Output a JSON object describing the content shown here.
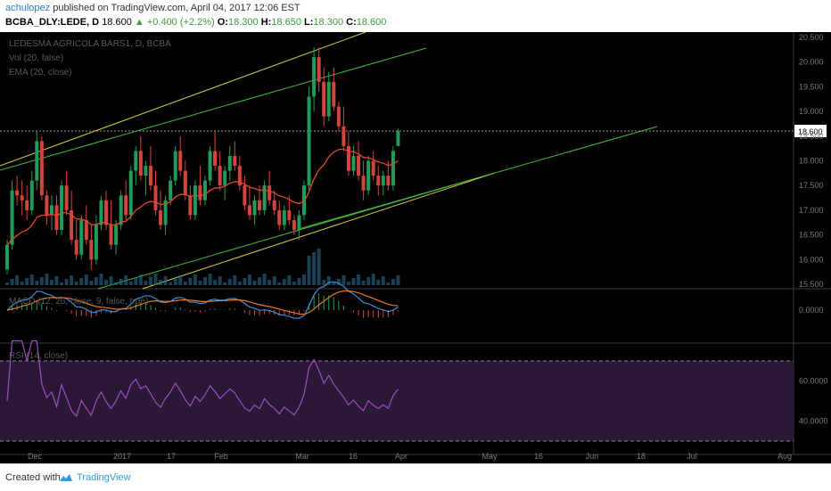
{
  "header": {
    "author": "achulopez",
    "published_text": "published on TradingView.com, April 04, 2017 12:06 EST",
    "symbol": "BCBA_DLY:LEDE, D",
    "last": "18.600",
    "change": "▲ +0.400 (+2.2%)",
    "o_label": "O:",
    "o_value": "18.300",
    "h_label": "H:",
    "h_value": "18.650",
    "l_label": "L:",
    "l_value": "18.300",
    "c_label": "C:",
    "c_value": "18.600"
  },
  "legend": {
    "title": "LEDESMA AGRICOLA BARS1, D, BCBA",
    "vol": "Vol (20, false)",
    "ema": "EMA (20, close)",
    "macd": "MACD (12, 26, close, 9, false, true)",
    "rsi": "RSI (14, close)"
  },
  "colors": {
    "up": "#1f9c5a",
    "down": "#d2453c",
    "ema": "#e0492f",
    "channel_yellow": "#d6d23a",
    "channel_green": "#3fbd3a",
    "macd_line": "#3d8ed6",
    "signal_line": "#e87a2a",
    "rsi": "#9a4fbf",
    "rsi_band": "#2a1836",
    "volume": "#2a6a8c"
  },
  "footer": {
    "created": "Created with",
    "brand": "TradingView"
  },
  "chart_data": {
    "type": "candlestick",
    "price_axis": {
      "ticks": [
        "20.500",
        "20.000",
        "19.500",
        "19.000",
        "18.500",
        "18.000",
        "17.500",
        "17.000",
        "16.500",
        "16.000",
        "15.500"
      ],
      "last_label": "18.600",
      "ylim": [
        15.5,
        20.6
      ]
    },
    "macd_axis": {
      "ticks": [
        "0.0000"
      ]
    },
    "rsi_axis": {
      "ticks": [
        "60.0000",
        "40.0000"
      ],
      "bands": [
        70,
        30
      ]
    },
    "time_axis": {
      "ticks": [
        "Dec",
        "2017",
        "17",
        "Feb",
        "Mar",
        "16",
        "Apr",
        "May",
        "16",
        "Jun",
        "18",
        "Jul",
        "Aug"
      ]
    },
    "candles": [
      [
        15.8,
        16.4,
        15.7,
        16.3
      ],
      [
        16.3,
        17.6,
        16.2,
        17.4
      ],
      [
        17.4,
        17.7,
        17.1,
        17.3
      ],
      [
        17.3,
        17.6,
        16.9,
        17.2
      ],
      [
        17.2,
        17.5,
        16.8,
        17.0
      ],
      [
        17.0,
        17.8,
        16.9,
        17.6
      ],
      [
        17.6,
        18.6,
        17.4,
        18.4
      ],
      [
        18.4,
        18.5,
        17.2,
        17.3
      ],
      [
        17.3,
        17.4,
        16.7,
        16.9
      ],
      [
        16.9,
        17.3,
        16.6,
        17.1
      ],
      [
        17.1,
        17.3,
        16.5,
        16.6
      ],
      [
        16.6,
        17.6,
        16.5,
        17.5
      ],
      [
        17.5,
        17.8,
        16.9,
        17.0
      ],
      [
        17.0,
        17.4,
        16.3,
        16.4
      ],
      [
        16.4,
        16.8,
        16.0,
        16.1
      ],
      [
        16.1,
        16.9,
        16.0,
        16.8
      ],
      [
        16.8,
        17.1,
        16.3,
        16.4
      ],
      [
        16.4,
        16.7,
        15.8,
        16.0
      ],
      [
        16.0,
        16.9,
        15.9,
        16.7
      ],
      [
        16.7,
        17.3,
        16.6,
        17.2
      ],
      [
        17.2,
        17.4,
        16.6,
        16.7
      ],
      [
        16.7,
        17.2,
        16.2,
        16.3
      ],
      [
        16.3,
        16.8,
        16.1,
        16.7
      ],
      [
        16.7,
        17.4,
        16.6,
        17.3
      ],
      [
        17.3,
        17.6,
        16.8,
        16.9
      ],
      [
        16.9,
        17.9,
        16.8,
        17.8
      ],
      [
        17.8,
        18.3,
        17.5,
        18.2
      ],
      [
        18.2,
        18.5,
        17.6,
        17.7
      ],
      [
        17.7,
        18.0,
        17.3,
        17.9
      ],
      [
        17.9,
        18.3,
        17.4,
        17.5
      ],
      [
        17.5,
        17.8,
        16.9,
        17.0
      ],
      [
        17.0,
        17.4,
        16.6,
        16.7
      ],
      [
        16.7,
        17.3,
        16.5,
        17.2
      ],
      [
        17.2,
        17.7,
        17.1,
        17.6
      ],
      [
        17.6,
        18.3,
        17.5,
        18.2
      ],
      [
        18.2,
        18.5,
        17.7,
        17.8
      ],
      [
        17.8,
        18.0,
        17.2,
        17.3
      ],
      [
        17.3,
        17.5,
        16.8,
        16.9
      ],
      [
        16.9,
        17.6,
        16.8,
        17.5
      ],
      [
        17.5,
        17.9,
        17.1,
        17.2
      ],
      [
        17.2,
        17.7,
        17.1,
        17.6
      ],
      [
        17.6,
        18.3,
        17.5,
        18.2
      ],
      [
        18.2,
        18.6,
        17.8,
        17.9
      ],
      [
        17.9,
        18.2,
        17.4,
        17.5
      ],
      [
        17.5,
        17.9,
        17.2,
        17.8
      ],
      [
        17.8,
        18.3,
        17.6,
        18.1
      ],
      [
        18.1,
        18.4,
        17.8,
        17.9
      ],
      [
        17.9,
        18.1,
        17.4,
        17.5
      ],
      [
        17.5,
        17.7,
        17.0,
        17.1
      ],
      [
        17.1,
        17.5,
        16.8,
        16.9
      ],
      [
        16.9,
        17.3,
        16.7,
        17.2
      ],
      [
        17.2,
        17.5,
        16.9,
        17.0
      ],
      [
        17.0,
        17.6,
        16.9,
        17.5
      ],
      [
        17.5,
        17.8,
        17.1,
        17.2
      ],
      [
        17.2,
        17.4,
        16.9,
        17.0
      ],
      [
        17.0,
        17.2,
        16.6,
        16.7
      ],
      [
        16.7,
        17.1,
        16.6,
        17.0
      ],
      [
        17.0,
        17.3,
        16.7,
        16.8
      ],
      [
        16.8,
        16.9,
        16.5,
        16.6
      ],
      [
        16.6,
        17.0,
        16.4,
        16.9
      ],
      [
        16.9,
        17.6,
        16.8,
        17.5
      ],
      [
        17.5,
        19.5,
        17.4,
        19.3
      ],
      [
        19.3,
        20.3,
        19.0,
        20.1
      ],
      [
        20.1,
        20.3,
        19.4,
        19.6
      ],
      [
        19.6,
        19.9,
        18.7,
        18.9
      ],
      [
        18.9,
        19.8,
        18.8,
        19.6
      ],
      [
        19.6,
        19.9,
        19.0,
        19.1
      ],
      [
        19.1,
        19.2,
        18.6,
        18.7
      ],
      [
        18.7,
        19.1,
        18.2,
        18.3
      ],
      [
        18.3,
        18.6,
        17.7,
        17.8
      ],
      [
        17.8,
        18.3,
        17.7,
        18.1
      ],
      [
        18.1,
        18.4,
        17.6,
        17.7
      ],
      [
        17.7,
        18.0,
        17.2,
        17.4
      ],
      [
        17.4,
        18.1,
        17.3,
        18.0
      ],
      [
        18.0,
        18.2,
        17.6,
        17.7
      ],
      [
        17.7,
        17.9,
        17.3,
        17.5
      ],
      [
        17.5,
        17.8,
        17.3,
        17.7
      ],
      [
        17.7,
        18.0,
        17.4,
        17.5
      ],
      [
        17.5,
        18.3,
        17.4,
        18.2
      ],
      [
        18.3,
        18.65,
        18.3,
        18.6
      ]
    ]
  }
}
